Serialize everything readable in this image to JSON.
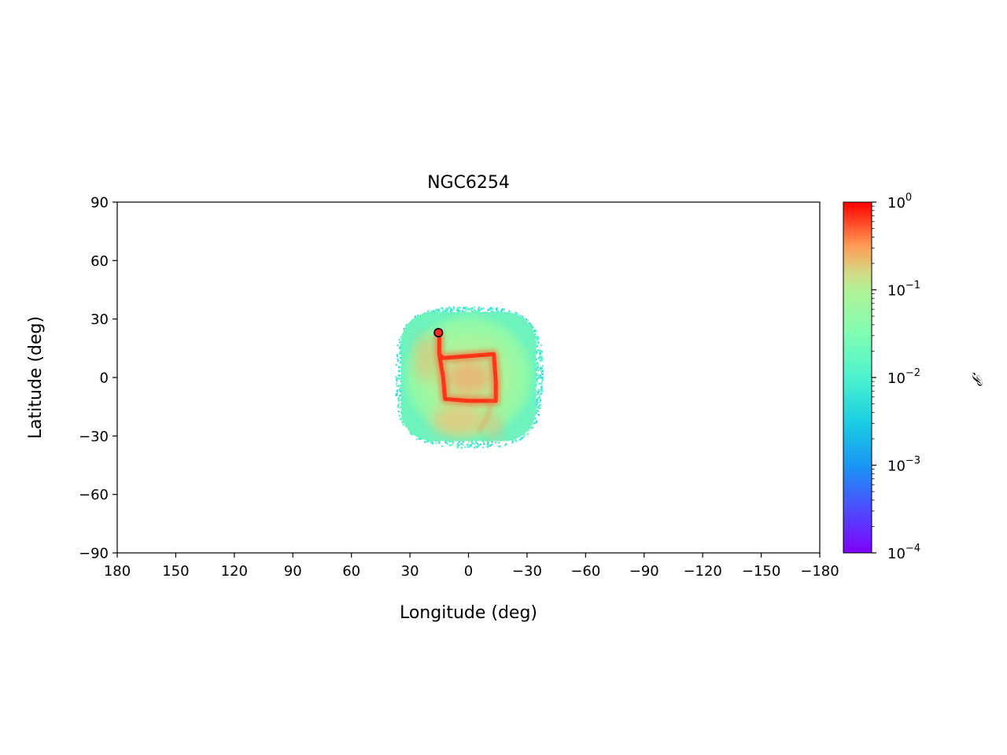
{
  "chart_data": {
    "type": "heatmap",
    "title": "NGC6254",
    "xlabel": "Longitude (deg)",
    "ylabel": "Latitude (deg)",
    "xlim": [
      180,
      -180
    ],
    "ylim": [
      -90,
      90
    ],
    "xticks": [
      180,
      150,
      120,
      90,
      60,
      30,
      0,
      -30,
      -60,
      -90,
      -120,
      -150,
      -180
    ],
    "xtick_labels": [
      "180",
      "150",
      "120",
      "90",
      "60",
      "30",
      "0",
      "−30",
      "−60",
      "−90",
      "−120",
      "−150",
      "−180"
    ],
    "yticks": [
      90,
      60,
      30,
      0,
      -30,
      -60,
      -90
    ],
    "ytick_labels": [
      "90",
      "60",
      "30",
      "0",
      "−30",
      "−60",
      "−90"
    ],
    "colorbar": {
      "label": "𝒫",
      "scale": "log",
      "range": [
        0.0001,
        1
      ],
      "colormap": "rainbow",
      "ticks": [
        {
          "value": 1,
          "base": "10",
          "exp": "0"
        },
        {
          "value": 0.1,
          "base": "10",
          "exp": "−1"
        },
        {
          "value": 0.01,
          "base": "10",
          "exp": "−2"
        },
        {
          "value": 0.001,
          "base": "10",
          "exp": "−3"
        },
        {
          "value": 0.0001,
          "base": "10",
          "exp": "−4"
        }
      ]
    },
    "density_region": {
      "lon_range": [
        -37,
        37
      ],
      "lat_range": [
        -35,
        36
      ],
      "background_value": 0.03,
      "edge_value": 0.005
    },
    "stream_track": [
      {
        "lon": 15,
        "lat": 22
      },
      {
        "lon": 15,
        "lat": 12
      },
      {
        "lon": 13,
        "lat": 10
      },
      {
        "lon": -13,
        "lat": 12
      },
      {
        "lon": -14,
        "lat": -2
      },
      {
        "lon": -14,
        "lat": -12
      },
      {
        "lon": 0,
        "lat": -12
      },
      {
        "lon": 12,
        "lat": -11
      },
      {
        "lon": 13,
        "lat": 0
      },
      {
        "lon": 15,
        "lat": 12
      }
    ],
    "cluster_position": {
      "lon": 15.4,
      "lat": 23,
      "color": "#ff2a1a"
    }
  }
}
